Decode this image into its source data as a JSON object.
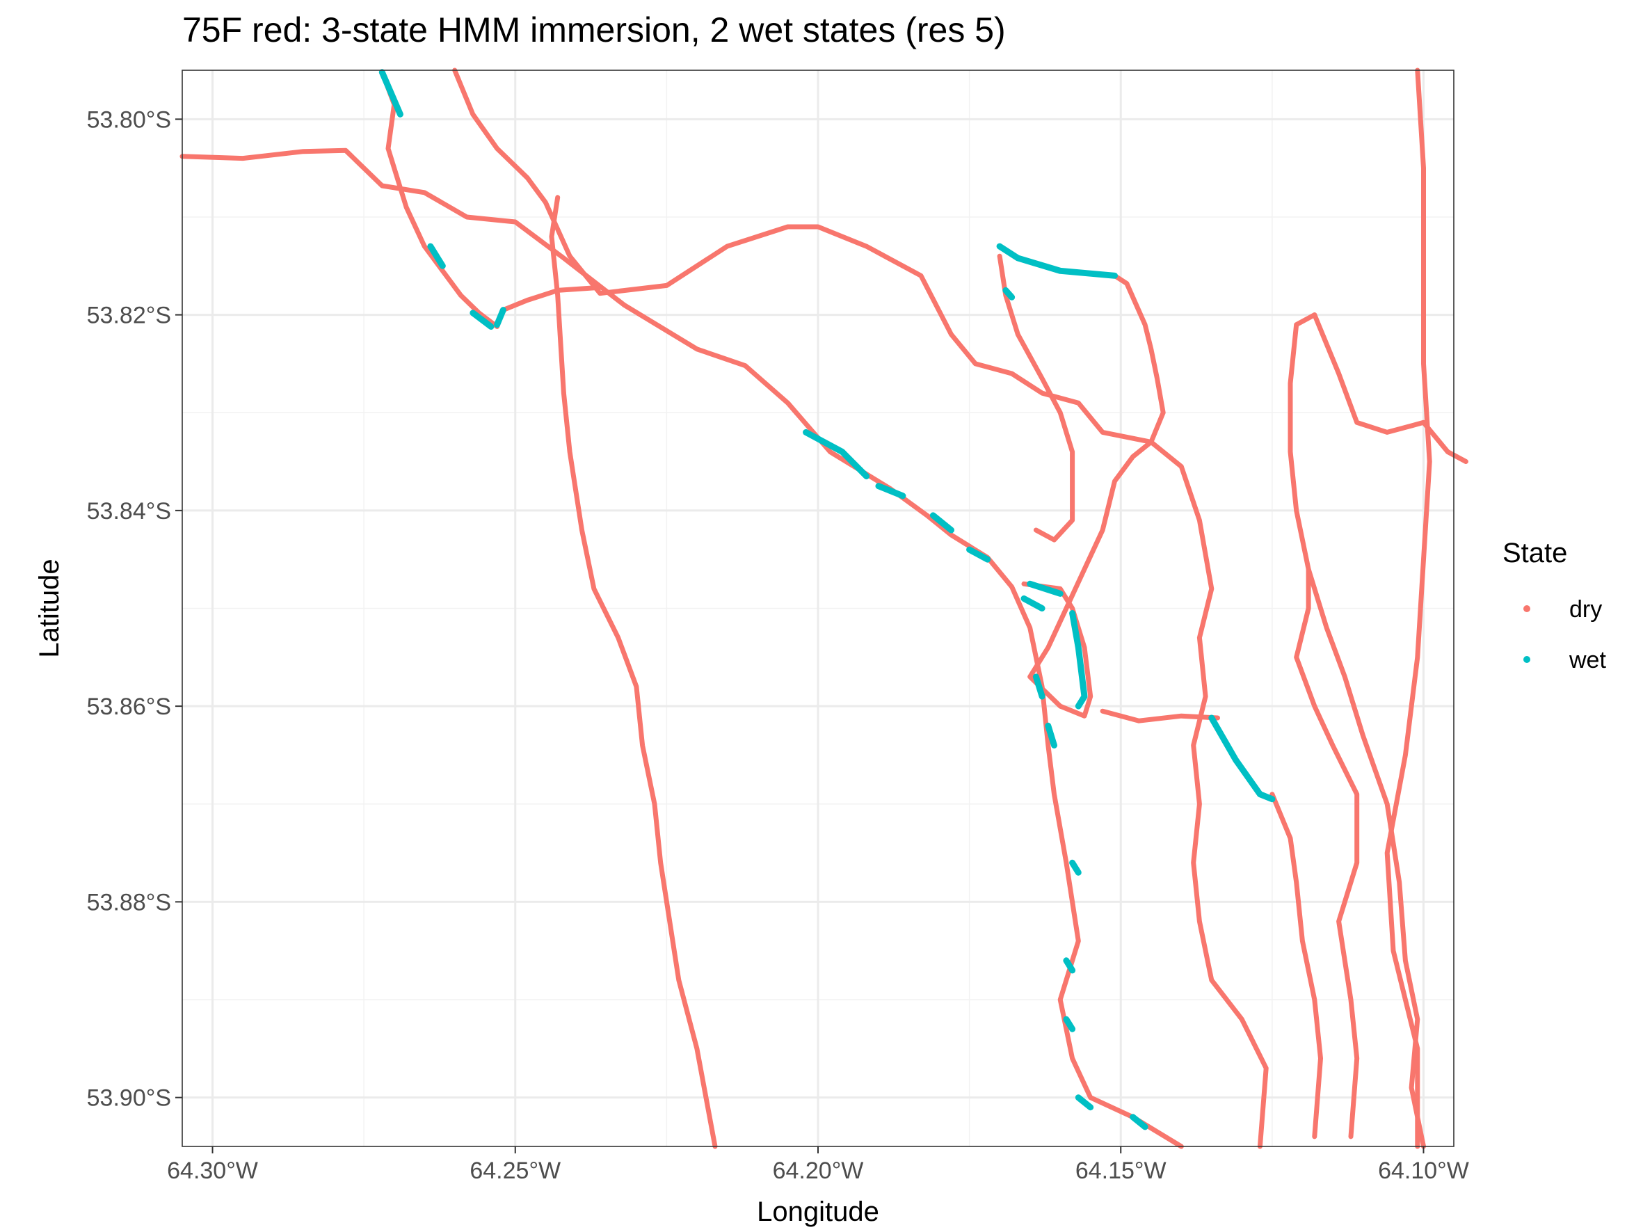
{
  "chart_data": {
    "type": "scatter",
    "title": "75F red: 3-state HMM immersion, 2 wet states (res 5)",
    "xlabel": "Longitude",
    "ylabel": "Latitude",
    "xlim": [
      -64.305,
      -64.095
    ],
    "ylim": [
      -53.905,
      -53.795
    ],
    "x_ticks": [
      -64.3,
      -64.25,
      -64.2,
      -64.15,
      -64.1
    ],
    "x_tick_labels": [
      "64.30°W",
      "64.25°W",
      "64.20°W",
      "64.15°W",
      "64.10°W"
    ],
    "y_ticks": [
      -53.8,
      -53.82,
      -53.84,
      -53.86,
      -53.88,
      -53.9
    ],
    "y_tick_labels": [
      "53.80°S",
      "53.82°S",
      "53.84°S",
      "53.86°S",
      "53.88°S",
      "53.90°S"
    ],
    "grid": true,
    "legend": {
      "title": "State",
      "placement": "right",
      "entries": [
        {
          "label": "dry",
          "color": "#F8766D"
        },
        {
          "label": "wet",
          "color": "#00BFC4"
        }
      ]
    },
    "series": [
      {
        "name": "dry",
        "color": "#F8766D",
        "tracks": [
          [
            [
              -64.305,
              -53.8038
            ],
            [
              -64.295,
              -53.804
            ],
            [
              -64.285,
              -53.8033
            ],
            [
              -64.278,
              -53.8032
            ],
            [
              -64.272,
              -53.8068
            ],
            [
              -64.265,
              -53.8075
            ],
            [
              -64.258,
              -53.81
            ],
            [
              -64.25,
              -53.8105
            ],
            [
              -64.242,
              -53.8142
            ],
            [
              -64.232,
              -53.819
            ],
            [
              -64.22,
              -53.8235
            ],
            [
              -64.212,
              -53.8252
            ],
            [
              -64.205,
              -53.829
            ],
            [
              -64.198,
              -53.834
            ],
            [
              -64.188,
              -53.8378
            ],
            [
              -64.182,
              -53.8405
            ],
            [
              -64.178,
              -53.8425
            ],
            [
              -64.172,
              -53.8448
            ],
            [
              -64.168,
              -53.8478
            ],
            [
              -64.165,
              -53.852
            ],
            [
              -64.163,
              -53.858
            ],
            [
              -64.162,
              -53.864
            ],
            [
              -64.161,
              -53.869
            ],
            [
              -64.159,
              -53.876
            ],
            [
              -64.157,
              -53.884
            ],
            [
              -64.16,
              -53.89
            ],
            [
              -64.158,
              -53.896
            ],
            [
              -64.155,
              -53.9
            ],
            [
              -64.148,
              -53.902
            ],
            [
              -64.14,
              -53.905
            ]
          ],
          [
            [
              -64.243,
              -53.808
            ],
            [
              -64.244,
              -53.812
            ],
            [
              -64.243,
              -53.818
            ],
            [
              -64.242,
              -53.828
            ],
            [
              -64.241,
              -53.834
            ],
            [
              -64.239,
              -53.842
            ],
            [
              -64.237,
              -53.848
            ],
            [
              -64.233,
              -53.853
            ],
            [
              -64.23,
              -53.858
            ],
            [
              -64.229,
              -53.864
            ],
            [
              -64.227,
              -53.87
            ],
            [
              -64.226,
              -53.876
            ],
            [
              -64.225,
              -53.88
            ],
            [
              -64.223,
              -53.888
            ],
            [
              -64.22,
              -53.895
            ],
            [
              -64.217,
              -53.905
            ]
          ],
          [
            [
              -64.26,
              -53.795
            ],
            [
              -64.257,
              -53.7995
            ],
            [
              -64.253,
              -53.803
            ],
            [
              -64.248,
              -53.806
            ],
            [
              -64.245,
              -53.8085
            ],
            [
              -64.241,
              -53.814
            ],
            [
              -64.236,
              -53.8178
            ],
            [
              -64.225,
              -53.817
            ],
            [
              -64.215,
              -53.813
            ],
            [
              -64.205,
              -53.811
            ],
            [
              -64.2,
              -53.811
            ],
            [
              -64.192,
              -53.813
            ],
            [
              -64.183,
              -53.816
            ],
            [
              -64.178,
              -53.822
            ],
            [
              -64.174,
              -53.825
            ],
            [
              -64.168,
              -53.826
            ],
            [
              -64.163,
              -53.828
            ],
            [
              -64.157,
              -53.829
            ],
            [
              -64.153,
              -53.832
            ],
            [
              -64.145,
              -53.833
            ],
            [
              -64.14,
              -53.8355
            ],
            [
              -64.137,
              -53.841
            ],
            [
              -64.135,
              -53.848
            ],
            [
              -64.137,
              -53.853
            ],
            [
              -64.136,
              -53.859
            ],
            [
              -64.138,
              -53.864
            ],
            [
              -64.137,
              -53.87
            ],
            [
              -64.138,
              -53.876
            ],
            [
              -64.137,
              -53.882
            ],
            [
              -64.135,
              -53.888
            ],
            [
              -64.13,
              -53.892
            ],
            [
              -64.126,
              -53.897
            ],
            [
              -64.127,
              -53.905
            ]
          ],
          [
            [
              -64.272,
              -53.7952
            ],
            [
              -64.27,
              -53.7985
            ],
            [
              -64.271,
              -53.803
            ],
            [
              -64.268,
              -53.809
            ],
            [
              -64.265,
              -53.813
            ],
            [
              -64.262,
              -53.8155
            ],
            [
              -64.259,
              -53.818
            ],
            [
              -64.256,
              -53.8198
            ],
            [
              -64.253,
              -53.8212
            ],
            [
              -64.252,
              -53.8195
            ],
            [
              -64.248,
              -53.8185
            ],
            [
              -64.243,
              -53.8175
            ],
            [
              -64.236,
              -53.8172
            ]
          ],
          [
            [
              -64.17,
              -53.813
            ],
            [
              -64.167,
              -53.8142
            ],
            [
              -64.16,
              -53.8155
            ],
            [
              -64.151,
              -53.816
            ],
            [
              -64.149,
              -53.8168
            ],
            [
              -64.146,
              -53.821
            ],
            [
              -64.145,
              -53.8235
            ],
            [
              -64.144,
              -53.8265
            ],
            [
              -64.143,
              -53.83
            ],
            [
              -64.145,
              -53.833
            ],
            [
              -64.148,
              -53.8345
            ],
            [
              -64.151,
              -53.837
            ],
            [
              -64.153,
              -53.842
            ],
            [
              -64.156,
              -53.846
            ],
            [
              -64.159,
              -53.85
            ],
            [
              -64.162,
              -53.854
            ],
            [
              -64.165,
              -53.857
            ],
            [
              -64.16,
              -53.86
            ],
            [
              -64.156,
              -53.861
            ],
            [
              -64.155,
              -53.859
            ],
            [
              -64.156,
              -53.854
            ],
            [
              -64.158,
              -53.85
            ],
            [
              -64.16,
              -53.848
            ],
            [
              -64.166,
              -53.8475
            ]
          ],
          [
            [
              -64.17,
              -53.814
            ],
            [
              -64.169,
              -53.818
            ],
            [
              -64.167,
              -53.822
            ],
            [
              -64.163,
              -53.8265
            ],
            [
              -64.16,
              -53.83
            ],
            [
              -64.158,
              -53.834
            ],
            [
              -64.158,
              -53.838
            ],
            [
              -64.158,
              -53.841
            ],
            [
              -64.161,
              -53.843
            ],
            [
              -64.164,
              -53.842
            ]
          ],
          [
            [
              -64.153,
              -53.8605
            ],
            [
              -64.147,
              -53.8615
            ],
            [
              -64.14,
              -53.861
            ],
            [
              -64.134,
              -53.8612
            ]
          ],
          [
            [
              -64.125,
              -53.869
            ],
            [
              -64.122,
              -53.8735
            ],
            [
              -64.121,
              -53.878
            ],
            [
              -64.12,
              -53.884
            ],
            [
              -64.118,
              -53.89
            ],
            [
              -64.117,
              -53.896
            ],
            [
              -64.118,
              -53.904
            ]
          ],
          [
            [
              -64.118,
              -53.82
            ],
            [
              -64.121,
              -53.821
            ],
            [
              -64.122,
              -53.827
            ],
            [
              -64.122,
              -53.834
            ],
            [
              -64.121,
              -53.84
            ],
            [
              -64.119,
              -53.846
            ],
            [
              -64.119,
              -53.85
            ],
            [
              -64.121,
              -53.855
            ],
            [
              -64.118,
              -53.86
            ],
            [
              -64.115,
              -53.864
            ],
            [
              -64.111,
              -53.869
            ],
            [
              -64.111,
              -53.876
            ],
            [
              -64.114,
              -53.882
            ],
            [
              -64.112,
              -53.89
            ],
            [
              -64.111,
              -53.896
            ],
            [
              -64.112,
              -53.904
            ]
          ],
          [
            [
              -64.118,
              -53.82
            ],
            [
              -64.114,
              -53.826
            ],
            [
              -64.111,
              -53.831
            ],
            [
              -64.106,
              -53.832
            ],
            [
              -64.1,
              -53.831
            ],
            [
              -64.096,
              -53.834
            ],
            [
              -64.093,
              -53.835
            ]
          ],
          [
            [
              -64.119,
              -53.846
            ],
            [
              -64.116,
              -53.852
            ],
            [
              -64.113,
              -53.857
            ],
            [
              -64.11,
              -53.863
            ],
            [
              -64.106,
              -53.87
            ],
            [
              -64.104,
              -53.878
            ],
            [
              -64.103,
              -53.886
            ],
            [
              -64.101,
              -53.892
            ],
            [
              -64.102,
              -53.899
            ],
            [
              -64.1,
              -53.905
            ]
          ],
          [
            [
              -64.101,
              -53.795
            ],
            [
              -64.1,
              -53.805
            ],
            [
              -64.1,
              -53.815
            ],
            [
              -64.1,
              -53.825
            ],
            [
              -64.099,
              -53.835
            ],
            [
              -64.1,
              -53.845
            ],
            [
              -64.101,
              -53.855
            ],
            [
              -64.103,
              -53.865
            ],
            [
              -64.106,
              -53.875
            ],
            [
              -64.105,
              -53.885
            ],
            [
              -64.101,
              -53.895
            ],
            [
              -64.101,
              -53.905
            ]
          ]
        ]
      },
      {
        "name": "wet",
        "color": "#00BFC4",
        "tracks": [
          [
            [
              -64.272,
              -53.7952
            ],
            [
              -64.269,
              -53.7995
            ]
          ],
          [
            [
              -64.253,
              -53.821
            ],
            [
              -64.252,
              -53.8195
            ]
          ],
          [
            [
              -64.257,
              -53.8198
            ],
            [
              -64.254,
              -53.8212
            ]
          ],
          [
            [
              -64.264,
              -53.813
            ],
            [
              -64.262,
              -53.815
            ]
          ],
          [
            [
              -64.17,
              -53.813
            ],
            [
              -64.167,
              -53.8142
            ],
            [
              -64.16,
              -53.8155
            ],
            [
              -64.151,
              -53.816
            ]
          ],
          [
            [
              -64.169,
              -53.8175
            ],
            [
              -64.168,
              -53.8182
            ]
          ],
          [
            [
              -64.165,
              -53.8475
            ],
            [
              -64.16,
              -53.8485
            ]
          ],
          [
            [
              -64.157,
              -53.86
            ],
            [
              -64.156,
              -53.859
            ],
            [
              -64.157,
              -53.854
            ],
            [
              -64.158,
              -53.8505
            ]
          ],
          [
            [
              -64.135,
              -53.8612
            ],
            [
              -64.131,
              -53.8655
            ],
            [
              -64.127,
              -53.869
            ],
            [
              -64.125,
              -53.8695
            ]
          ],
          [
            [
              -64.202,
              -53.832
            ],
            [
              -64.196,
              -53.834
            ],
            [
              -64.192,
              -53.8365
            ]
          ],
          [
            [
              -64.19,
              -53.8375
            ],
            [
              -64.186,
              -53.8385
            ]
          ],
          [
            [
              -64.181,
              -53.8405
            ],
            [
              -64.178,
              -53.842
            ]
          ],
          [
            [
              -64.175,
              -53.844
            ],
            [
              -64.172,
              -53.845
            ]
          ],
          [
            [
              -64.166,
              -53.849
            ],
            [
              -64.163,
              -53.85
            ]
          ],
          [
            [
              -64.164,
              -53.857
            ],
            [
              -64.163,
              -53.859
            ]
          ],
          [
            [
              -64.162,
              -53.862
            ],
            [
              -64.161,
              -53.864
            ]
          ],
          [
            [
              -64.158,
              -53.876
            ],
            [
              -64.157,
              -53.877
            ]
          ],
          [
            [
              -64.159,
              -53.886
            ],
            [
              -64.158,
              -53.887
            ]
          ],
          [
            [
              -64.159,
              -53.892
            ],
            [
              -64.158,
              -53.893
            ]
          ],
          [
            [
              -64.157,
              -53.9
            ],
            [
              -64.155,
              -53.901
            ]
          ],
          [
            [
              -64.148,
              -53.902
            ],
            [
              -64.146,
              -53.903
            ]
          ]
        ]
      }
    ]
  }
}
